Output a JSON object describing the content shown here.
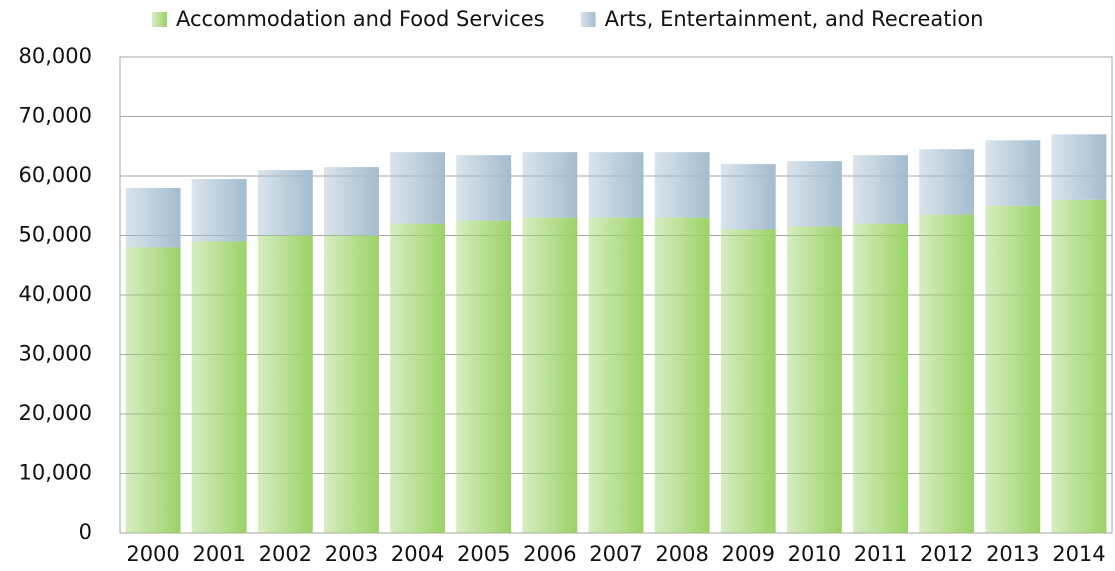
{
  "chart_data": {
    "type": "stacked-bar",
    "categories": [
      "2000",
      "2001",
      "2002",
      "2003",
      "2004",
      "2005",
      "2006",
      "2007",
      "2008",
      "2009",
      "2010",
      "2011",
      "2012",
      "2013",
      "2014"
    ],
    "series": [
      {
        "name": "Accommodation and Food Services",
        "color": "#9bd266",
        "values": [
          48000,
          49000,
          50000,
          50000,
          52000,
          52500,
          53000,
          53000,
          53000,
          51000,
          51500,
          52000,
          53500,
          55000,
          56000
        ]
      },
      {
        "name": "Arts, Entertainment, and Recreation",
        "color": "#a3bccf",
        "values": [
          10000,
          10500,
          11000,
          11500,
          12000,
          11000,
          11000,
          11000,
          11000,
          11000,
          11000,
          11500,
          11000,
          11000,
          11000
        ]
      }
    ],
    "ylim": [
      0,
      80000
    ],
    "yticks": [
      0,
      {
        "value": 10000,
        "label": "10,000"
      },
      {
        "value": 20000,
        "label": "20,000"
      },
      {
        "value": 30000,
        "label": "30,000"
      },
      {
        "value": 40000,
        "label": "40,000"
      },
      {
        "value": 50000,
        "label": "50,000"
      },
      {
        "value": 60000,
        "label": "60,000"
      },
      {
        "value": 70000,
        "label": "70,000"
      },
      {
        "value": 80000,
        "label": "80,000"
      }
    ],
    "grid": true,
    "legend": "top"
  }
}
